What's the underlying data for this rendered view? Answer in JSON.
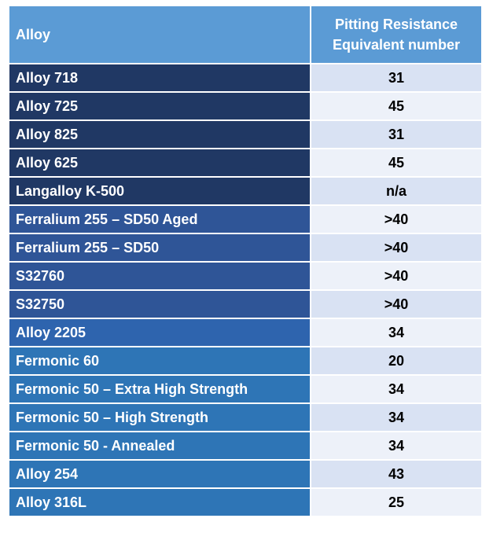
{
  "header": {
    "columns": [
      "Alloy",
      "Pitting Resistance Equivalent number"
    ]
  },
  "table": {
    "rows": [
      [
        "Alloy 718",
        "31"
      ],
      [
        "Alloy 725",
        "45"
      ],
      [
        "Alloy 825",
        "31"
      ],
      [
        "Alloy 625",
        "45"
      ],
      [
        "Langalloy K-500",
        "n/a"
      ],
      [
        "Ferralium 255 – SD50 Aged",
        ">40"
      ],
      [
        "Ferralium 255 – SD50",
        ">40"
      ],
      [
        "S32760",
        ">40"
      ],
      [
        "S32750",
        ">40"
      ],
      [
        "Alloy 2205",
        "34"
      ],
      [
        "Fermonic 60",
        "20"
      ],
      [
        "Fermonic 50 – Extra High Strength",
        "34"
      ],
      [
        "Fermonic 50 – High Strength",
        "34"
      ],
      [
        "Fermonic 50 - Annealed",
        "34"
      ],
      [
        "Alloy 254",
        "43"
      ],
      [
        "Alloy 316L",
        "25"
      ]
    ]
  }
}
